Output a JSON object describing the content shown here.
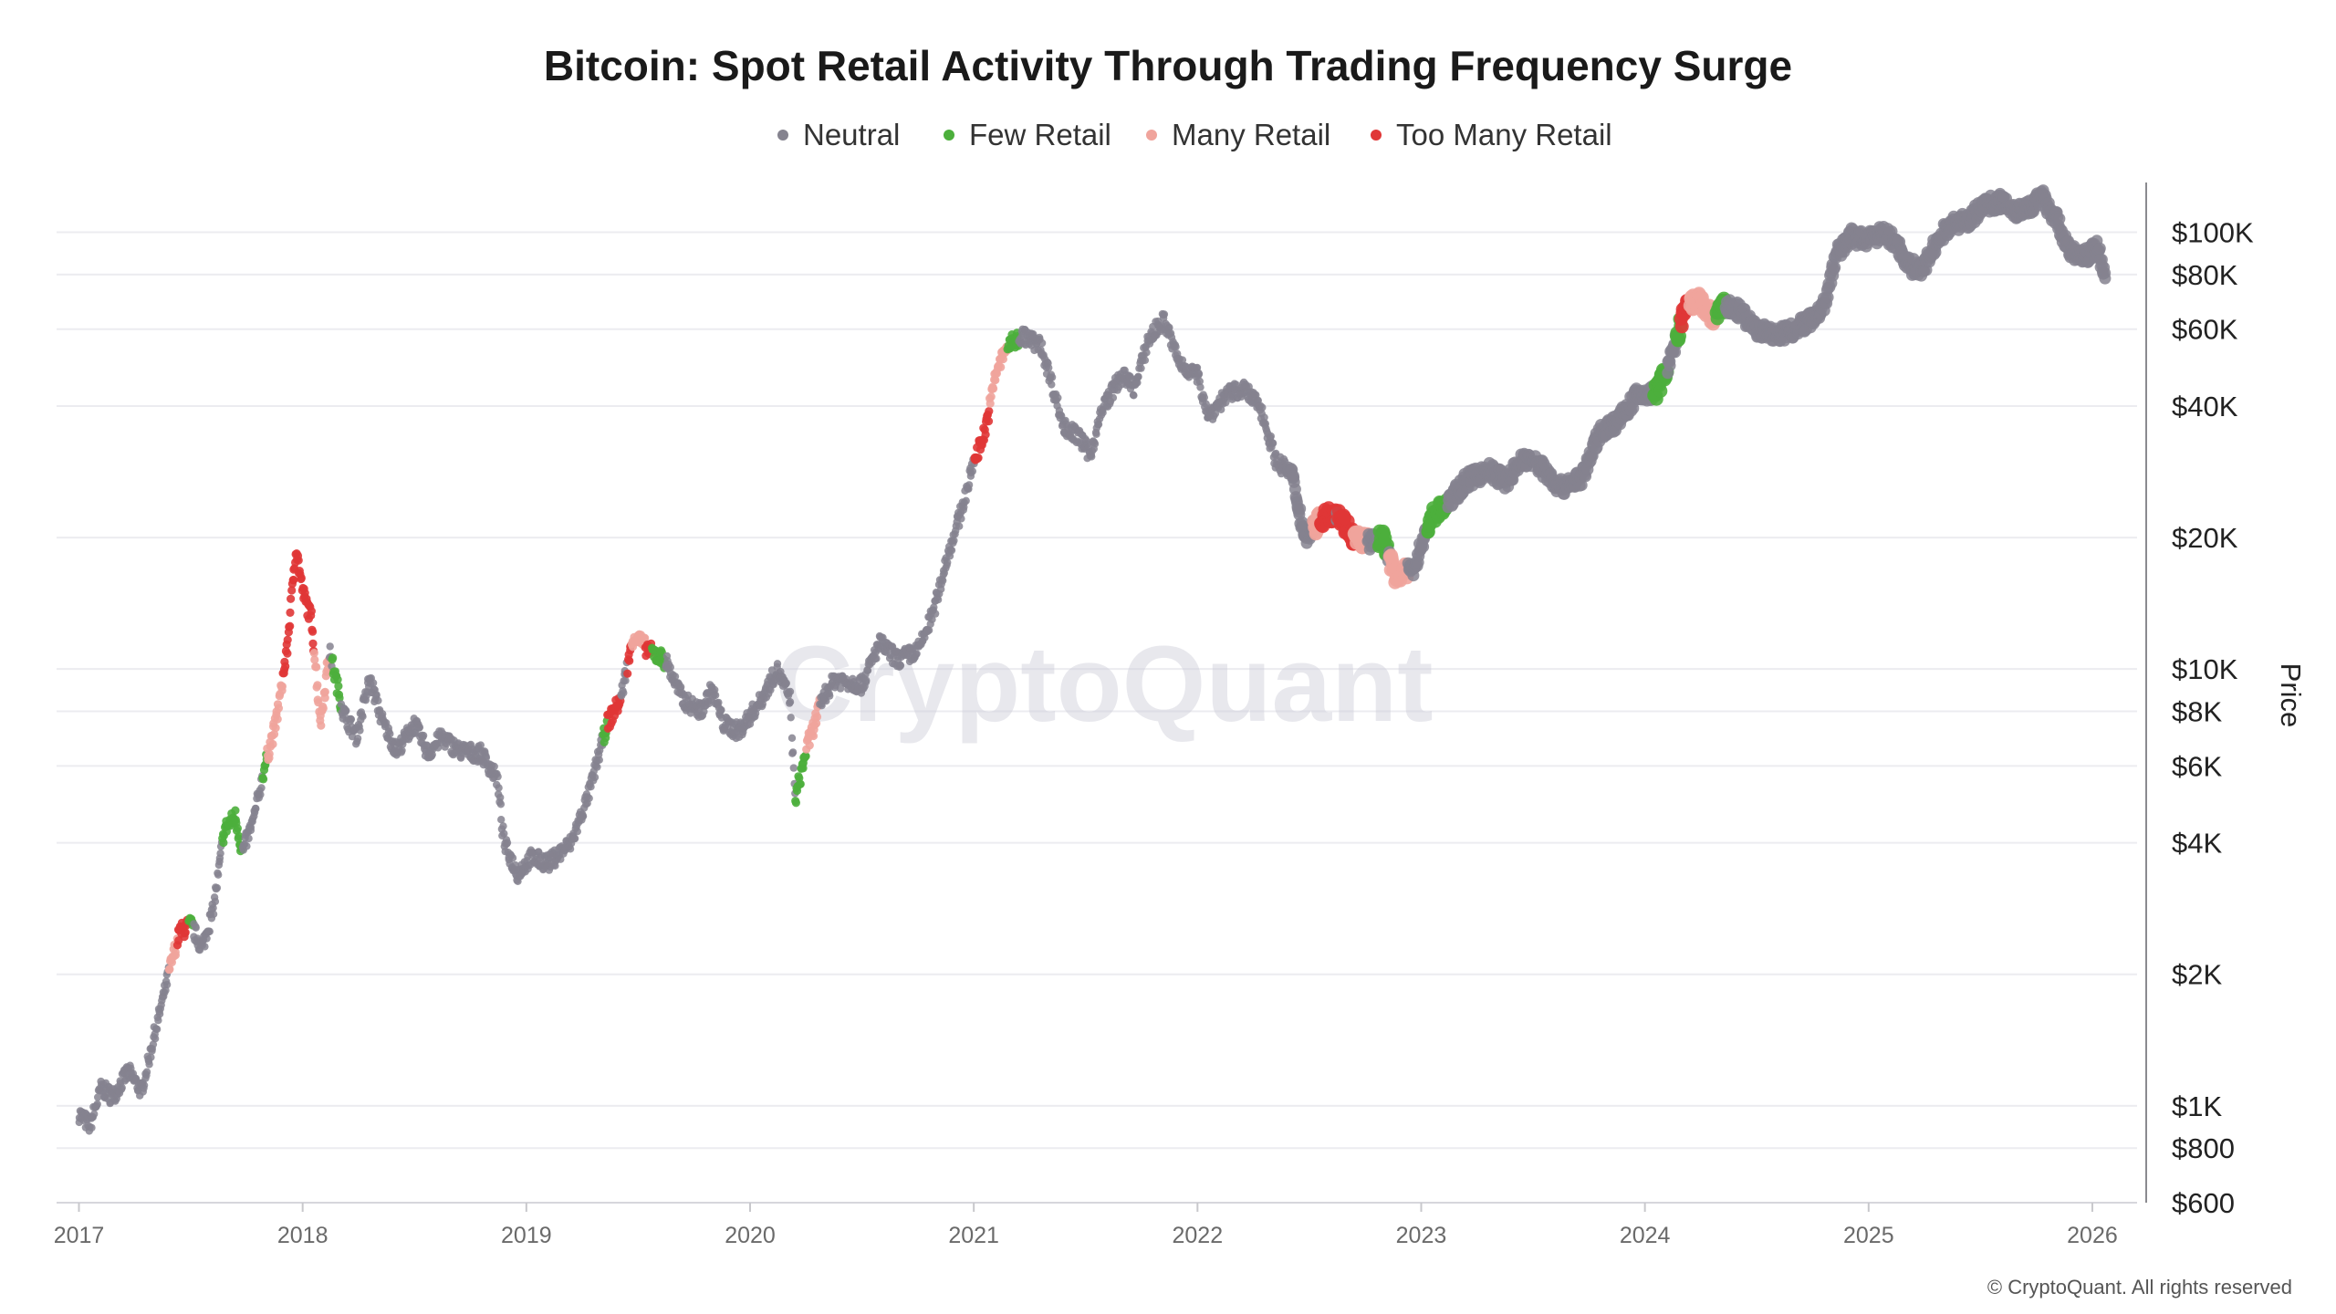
{
  "chart_data": {
    "type": "scatter",
    "title": "Bitcoin: Spot Retail Activity Through Trading Frequency Surge",
    "xlabel": "",
    "ylabel": "Price",
    "yscale": "log",
    "ylim": [
      600,
      130000
    ],
    "xlim": [
      2016.9,
      2026.2
    ],
    "x_ticks": [
      {
        "value": 2017,
        "label": "2017"
      },
      {
        "value": 2018,
        "label": "2018"
      },
      {
        "value": 2019,
        "label": "2019"
      },
      {
        "value": 2020,
        "label": "2020"
      },
      {
        "value": 2021,
        "label": "2021"
      },
      {
        "value": 2022,
        "label": "2022"
      },
      {
        "value": 2023,
        "label": "2023"
      },
      {
        "value": 2024,
        "label": "2024"
      },
      {
        "value": 2025,
        "label": "2025"
      },
      {
        "value": 2026,
        "label": "2026"
      }
    ],
    "y_ticks": [
      {
        "value": 100000,
        "label": "$100K"
      },
      {
        "value": 80000,
        "label": "$80K"
      },
      {
        "value": 60000,
        "label": "$60K"
      },
      {
        "value": 40000,
        "label": "$40K"
      },
      {
        "value": 20000,
        "label": "$20K"
      },
      {
        "value": 10000,
        "label": "$10K"
      },
      {
        "value": 8000,
        "label": "$8K"
      },
      {
        "value": 6000,
        "label": "$6K"
      },
      {
        "value": 4000,
        "label": "$4K"
      },
      {
        "value": 2000,
        "label": "$2K"
      },
      {
        "value": 1000,
        "label": "$1K"
      },
      {
        "value": 800,
        "label": "$800"
      },
      {
        "value": 600,
        "label": "$600"
      }
    ],
    "grid": true,
    "legend_position": "top-center",
    "series": [
      {
        "name": "Neutral",
        "color": "#85838f"
      },
      {
        "name": "Few Retail",
        "color": "#4caf3c"
      },
      {
        "name": "Many Retail",
        "color": "#f0a49c"
      },
      {
        "name": "Too Many Retail",
        "color": "#e03636"
      }
    ],
    "price_path": [
      [
        2017.0,
        960
      ],
      [
        2017.05,
        900
      ],
      [
        2017.1,
        1100
      ],
      [
        2017.15,
        1050
      ],
      [
        2017.22,
        1200
      ],
      [
        2017.28,
        1080
      ],
      [
        2017.33,
        1400
      ],
      [
        2017.4,
        2000
      ],
      [
        2017.45,
        2500
      ],
      [
        2017.5,
        2600
      ],
      [
        2017.55,
        2300
      ],
      [
        2017.6,
        2800
      ],
      [
        2017.65,
        4300
      ],
      [
        2017.7,
        4600
      ],
      [
        2017.73,
        3800
      ],
      [
        2017.78,
        4500
      ],
      [
        2017.83,
        6000
      ],
      [
        2017.88,
        7500
      ],
      [
        2017.93,
        11000
      ],
      [
        2017.97,
        19000
      ],
      [
        2018.0,
        15000
      ],
      [
        2018.04,
        13000
      ],
      [
        2018.08,
        7500
      ],
      [
        2018.12,
        11000
      ],
      [
        2018.18,
        8000
      ],
      [
        2018.24,
        7000
      ],
      [
        2018.3,
        9500
      ],
      [
        2018.36,
        7500
      ],
      [
        2018.42,
        6500
      ],
      [
        2018.5,
        7500
      ],
      [
        2018.56,
        6400
      ],
      [
        2018.62,
        7000
      ],
      [
        2018.7,
        6500
      ],
      [
        2018.8,
        6400
      ],
      [
        2018.87,
        5600
      ],
      [
        2018.9,
        4000
      ],
      [
        2018.96,
        3400
      ],
      [
        2019.02,
        3700
      ],
      [
        2019.1,
        3600
      ],
      [
        2019.2,
        4000
      ],
      [
        2019.28,
        5200
      ],
      [
        2019.36,
        7500
      ],
      [
        2019.42,
        8500
      ],
      [
        2019.48,
        12000
      ],
      [
        2019.55,
        11000
      ],
      [
        2019.62,
        10500
      ],
      [
        2019.7,
        8500
      ],
      [
        2019.78,
        8000
      ],
      [
        2019.83,
        9000
      ],
      [
        2019.88,
        7500
      ],
      [
        2019.95,
        7200
      ],
      [
        2020.05,
        8500
      ],
      [
        2020.12,
        10000
      ],
      [
        2020.18,
        8500
      ],
      [
        2020.2,
        5000
      ],
      [
        2020.25,
        6500
      ],
      [
        2020.32,
        8500
      ],
      [
        2020.38,
        9500
      ],
      [
        2020.5,
        9200
      ],
      [
        2020.58,
        11500
      ],
      [
        2020.66,
        10500
      ],
      [
        2020.75,
        11000
      ],
      [
        2020.82,
        13500
      ],
      [
        2020.88,
        18000
      ],
      [
        2020.95,
        23500
      ],
      [
        2021.0,
        30000
      ],
      [
        2021.05,
        35000
      ],
      [
        2021.1,
        48000
      ],
      [
        2021.15,
        55000
      ],
      [
        2021.22,
        58000
      ],
      [
        2021.3,
        55000
      ],
      [
        2021.35,
        45000
      ],
      [
        2021.4,
        36000
      ],
      [
        2021.47,
        34000
      ],
      [
        2021.52,
        31000
      ],
      [
        2021.58,
        40000
      ],
      [
        2021.66,
        47000
      ],
      [
        2021.72,
        44000
      ],
      [
        2021.78,
        57000
      ],
      [
        2021.85,
        63000
      ],
      [
        2021.92,
        50000
      ],
      [
        2022.0,
        47000
      ],
      [
        2022.05,
        38000
      ],
      [
        2022.12,
        42000
      ],
      [
        2022.2,
        44000
      ],
      [
        2022.28,
        40000
      ],
      [
        2022.35,
        30000
      ],
      [
        2022.42,
        28000
      ],
      [
        2022.48,
        20000
      ],
      [
        2022.55,
        22000
      ],
      [
        2022.62,
        23000
      ],
      [
        2022.7,
        20000
      ],
      [
        2022.78,
        19500
      ],
      [
        2022.83,
        20000
      ],
      [
        2022.88,
        16500
      ],
      [
        2022.96,
        16800
      ],
      [
        2023.05,
        22500
      ],
      [
        2023.12,
        24000
      ],
      [
        2023.2,
        27000
      ],
      [
        2023.3,
        28500
      ],
      [
        2023.38,
        27000
      ],
      [
        2023.46,
        30500
      ],
      [
        2023.54,
        29000
      ],
      [
        2023.62,
        26000
      ],
      [
        2023.72,
        27500
      ],
      [
        2023.8,
        35000
      ],
      [
        2023.88,
        37000
      ],
      [
        2023.96,
        42000
      ],
      [
        2024.05,
        43000
      ],
      [
        2024.12,
        52000
      ],
      [
        2024.18,
        67000
      ],
      [
        2024.24,
        70000
      ],
      [
        2024.3,
        64000
      ],
      [
        2024.36,
        68000
      ],
      [
        2024.42,
        66000
      ],
      [
        2024.5,
        60000
      ],
      [
        2024.58,
        58000
      ],
      [
        2024.66,
        60000
      ],
      [
        2024.74,
        63000
      ],
      [
        2024.8,
        68000
      ],
      [
        2024.86,
        90000
      ],
      [
        2024.92,
        98000
      ],
      [
        2025.0,
        96000
      ],
      [
        2025.06,
        100000
      ],
      [
        2025.12,
        95000
      ],
      [
        2025.18,
        84000
      ],
      [
        2025.24,
        82000
      ],
      [
        2025.3,
        94000
      ],
      [
        2025.36,
        104000
      ],
      [
        2025.44,
        106000
      ],
      [
        2025.52,
        116000
      ],
      [
        2025.6,
        118000
      ],
      [
        2025.66,
        112000
      ],
      [
        2025.72,
        115000
      ],
      [
        2025.78,
        120000
      ],
      [
        2025.84,
        107000
      ],
      [
        2025.9,
        90000
      ],
      [
        2025.96,
        88000
      ],
      [
        2026.02,
        92000
      ],
      [
        2026.06,
        80000
      ]
    ],
    "signal_windows": [
      {
        "series": "Many Retail",
        "from": 2017.4,
        "to": 2017.47
      },
      {
        "series": "Too Many Retail",
        "from": 2017.44,
        "to": 2017.49
      },
      {
        "series": "Few Retail",
        "from": 2017.49,
        "to": 2017.51
      },
      {
        "series": "Few Retail",
        "from": 2017.64,
        "to": 2017.73
      },
      {
        "series": "Few Retail",
        "from": 2017.82,
        "to": 2017.85
      },
      {
        "series": "Many Retail",
        "from": 2017.84,
        "to": 2017.91
      },
      {
        "series": "Too Many Retail",
        "from": 2017.91,
        "to": 2018.05
      },
      {
        "series": "Many Retail",
        "from": 2018.05,
        "to": 2018.12
      },
      {
        "series": "Few Retail",
        "from": 2018.13,
        "to": 2018.17
      },
      {
        "series": "Few Retail",
        "from": 2019.34,
        "to": 2019.36
      },
      {
        "series": "Too Many Retail",
        "from": 2019.36,
        "to": 2019.42
      },
      {
        "series": "Too Many Retail",
        "from": 2019.45,
        "to": 2019.56
      },
      {
        "series": "Many Retail",
        "from": 2019.47,
        "to": 2019.53
      },
      {
        "series": "Few Retail",
        "from": 2019.56,
        "to": 2019.62
      },
      {
        "series": "Few Retail",
        "from": 2020.2,
        "to": 2020.25
      },
      {
        "series": "Many Retail",
        "from": 2020.25,
        "to": 2020.31
      },
      {
        "series": "Too Many Retail",
        "from": 2021.0,
        "to": 2021.08
      },
      {
        "series": "Many Retail",
        "from": 2021.07,
        "to": 2021.15
      },
      {
        "series": "Few Retail",
        "from": 2021.15,
        "to": 2021.2
      },
      {
        "series": "Many Retail",
        "from": 2022.52,
        "to": 2022.56
      },
      {
        "series": "Too Many Retail",
        "from": 2022.55,
        "to": 2022.62
      },
      {
        "series": "Too Many Retail",
        "from": 2022.63,
        "to": 2022.71
      },
      {
        "series": "Many Retail",
        "from": 2022.7,
        "to": 2022.76
      },
      {
        "series": "Few Retail",
        "from": 2022.81,
        "to": 2022.85
      },
      {
        "series": "Many Retail",
        "from": 2022.86,
        "to": 2022.94
      },
      {
        "series": "Few Retail",
        "from": 2023.03,
        "to": 2023.12
      },
      {
        "series": "Few Retail",
        "from": 2024.04,
        "to": 2024.1
      },
      {
        "series": "Few Retail",
        "from": 2024.14,
        "to": 2024.16
      },
      {
        "series": "Too Many Retail",
        "from": 2024.16,
        "to": 2024.28
      },
      {
        "series": "Many Retail",
        "from": 2024.2,
        "to": 2024.32
      },
      {
        "series": "Few Retail",
        "from": 2024.32,
        "to": 2024.36
      }
    ]
  },
  "watermark": "CryptoQuant",
  "copyright": "© CryptoQuant. All rights reserved"
}
